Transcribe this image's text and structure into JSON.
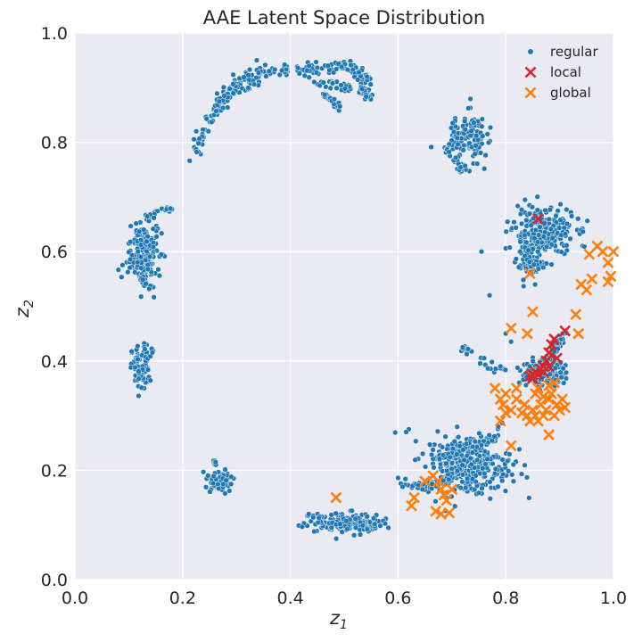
{
  "chart_data": {
    "type": "scatter",
    "title": "AAE Latent Space Distribution",
    "xlabel": "z",
    "xlabel_sub": "1",
    "ylabel": "z",
    "ylabel_sub": "2",
    "xlim": [
      0.0,
      1.0
    ],
    "ylim": [
      0.0,
      1.0
    ],
    "x_ticks": [
      "0.0",
      "0.2",
      "0.4",
      "0.6",
      "0.8",
      "1.0"
    ],
    "y_ticks": [
      "0.0",
      "0.2",
      "0.4",
      "0.6",
      "0.8",
      "1.0"
    ],
    "grid": true,
    "legend_position": "top-right",
    "series": [
      {
        "name": "regular",
        "marker": "circle",
        "color": "#1f77b4",
        "clusters": [
          {
            "shape": "arc",
            "points": [
              [
                0.22,
                0.78
              ],
              [
                0.24,
                0.82
              ],
              [
                0.26,
                0.86
              ],
              [
                0.28,
                0.89
              ],
              [
                0.31,
                0.92
              ],
              [
                0.35,
                0.93
              ],
              [
                0.4,
                0.93
              ],
              [
                0.45,
                0.935
              ],
              [
                0.5,
                0.94
              ],
              [
                0.53,
                0.925
              ],
              [
                0.55,
                0.91
              ]
            ],
            "spread": 0.012,
            "count": 200
          },
          {
            "shape": "arc",
            "points": [
              [
                0.27,
                0.87
              ],
              [
                0.3,
                0.895
              ],
              [
                0.34,
                0.915
              ]
            ],
            "spread": 0.01,
            "count": 40
          },
          {
            "shape": "arc",
            "points": [
              [
                0.44,
                0.915
              ],
              [
                0.49,
                0.905
              ],
              [
                0.53,
                0.895
              ],
              [
                0.55,
                0.885
              ]
            ],
            "spread": 0.008,
            "count": 50
          },
          {
            "shape": "arc",
            "points": [
              [
                0.46,
                0.89
              ],
              [
                0.48,
                0.875
              ],
              [
                0.49,
                0.86
              ]
            ],
            "spread": 0.006,
            "count": 25
          },
          {
            "shape": "arc",
            "points": [
              [
                0.53,
                0.9
              ],
              [
                0.54,
                0.885
              ]
            ],
            "spread": 0.005,
            "count": 15
          },
          {
            "shape": "blob",
            "center": [
              0.73,
              0.81
            ],
            "sx": 0.017,
            "sy": 0.022,
            "count": 140
          },
          {
            "shape": "arc",
            "points": [
              [
                0.69,
                0.79
              ],
              [
                0.71,
                0.76
              ],
              [
                0.72,
                0.75
              ]
            ],
            "spread": 0.006,
            "count": 25
          },
          {
            "shape": "blob",
            "center": [
              0.128,
              0.6
            ],
            "sx": 0.014,
            "sy": 0.03,
            "count": 170
          },
          {
            "shape": "arc",
            "points": [
              [
                0.13,
                0.66
              ],
              [
                0.15,
                0.67
              ],
              [
                0.18,
                0.678
              ]
            ],
            "spread": 0.005,
            "count": 25
          },
          {
            "shape": "arc",
            "points": [
              [
                0.12,
                0.56
              ],
              [
                0.13,
                0.54
              ],
              [
                0.145,
                0.532
              ]
            ],
            "spread": 0.005,
            "count": 20
          },
          {
            "shape": "blob",
            "center": [
              0.122,
              0.385
            ],
            "sx": 0.008,
            "sy": 0.022,
            "count": 80
          },
          {
            "shape": "arc",
            "points": [
              [
                0.13,
                0.4
              ],
              [
                0.145,
                0.42
              ]
            ],
            "spread": 0.004,
            "count": 10
          },
          {
            "shape": "blob",
            "center": [
              0.27,
              0.18
            ],
            "sx": 0.012,
            "sy": 0.01,
            "count": 60
          },
          {
            "shape": "arc",
            "points": [
              [
                0.26,
                0.21
              ],
              [
                0.255,
                0.22
              ]
            ],
            "spread": 0.003,
            "count": 8
          },
          {
            "shape": "blob",
            "center": [
              0.51,
              0.105
            ],
            "sx": 0.03,
            "sy": 0.008,
            "count": 170
          },
          {
            "shape": "arc",
            "points": [
              [
                0.43,
                0.12
              ],
              [
                0.46,
                0.11
              ],
              [
                0.5,
                0.095
              ],
              [
                0.55,
                0.095
              ]
            ],
            "spread": 0.006,
            "count": 40
          },
          {
            "shape": "blob",
            "center": [
              0.87,
              0.635
            ],
            "sx": 0.028,
            "sy": 0.022,
            "count": 260
          },
          {
            "shape": "blob",
            "center": [
              0.845,
              0.575
            ],
            "sx": 0.012,
            "sy": 0.015,
            "count": 70
          },
          {
            "shape": "blob",
            "center": [
              0.87,
              0.38
            ],
            "sx": 0.02,
            "sy": 0.01,
            "count": 150
          },
          {
            "shape": "arc",
            "points": [
              [
                0.84,
                0.37
              ],
              [
                0.87,
                0.39
              ],
              [
                0.89,
                0.42
              ],
              [
                0.91,
                0.455
              ]
            ],
            "spread": 0.006,
            "count": 70
          },
          {
            "shape": "arc",
            "points": [
              [
                0.8,
                0.38
              ],
              [
                0.77,
                0.39
              ],
              [
                0.74,
                0.41
              ],
              [
                0.72,
                0.425
              ]
            ],
            "spread": 0.01,
            "count": 20
          },
          {
            "shape": "blob",
            "center": [
              0.73,
              0.21
            ],
            "sx": 0.04,
            "sy": 0.028,
            "count": 300
          },
          {
            "shape": "arc",
            "points": [
              [
                0.61,
                0.17
              ],
              [
                0.65,
                0.17
              ],
              [
                0.68,
                0.18
              ],
              [
                0.72,
                0.21
              ],
              [
                0.76,
                0.25
              ],
              [
                0.79,
                0.28
              ]
            ],
            "spread": 0.01,
            "count": 80
          },
          {
            "shape": "arc",
            "points": [
              [
                0.66,
                0.22
              ],
              [
                0.7,
                0.23
              ],
              [
                0.74,
                0.25
              ]
            ],
            "spread": 0.008,
            "count": 30
          },
          {
            "shape": "points",
            "points": [
              [
                0.62,
                0.275
              ],
              [
                0.615,
                0.27
              ],
              [
                0.6,
                0.186
              ],
              [
                0.755,
                0.6
              ],
              [
                0.77,
                0.52
              ],
              [
                0.73,
                0.422
              ],
              [
                0.72,
                0.425
              ],
              [
                0.76,
                0.405
              ],
              [
                0.79,
                0.39
              ],
              [
                0.8,
                0.45
              ],
              [
                0.81,
                0.435
              ],
              [
                0.825,
                0.36
              ]
            ]
          }
        ]
      },
      {
        "name": "local",
        "marker": "x",
        "color": "#d62728",
        "points": [
          [
            0.86,
            0.66
          ],
          [
            0.91,
            0.455
          ],
          [
            0.89,
            0.44
          ],
          [
            0.885,
            0.43
          ],
          [
            0.88,
            0.415
          ],
          [
            0.875,
            0.4
          ],
          [
            0.87,
            0.39
          ],
          [
            0.865,
            0.385
          ],
          [
            0.855,
            0.38
          ],
          [
            0.85,
            0.375
          ],
          [
            0.845,
            0.372
          ],
          [
            0.85,
            0.368
          ],
          [
            0.86,
            0.375
          ],
          [
            0.87,
            0.38
          ],
          [
            0.88,
            0.39
          ],
          [
            0.895,
            0.405
          ]
        ]
      },
      {
        "name": "global",
        "marker": "x",
        "color": "#ff7f0e",
        "points": [
          [
            0.485,
            0.15
          ],
          [
            0.625,
            0.135
          ],
          [
            0.63,
            0.15
          ],
          [
            0.65,
            0.18
          ],
          [
            0.665,
            0.19
          ],
          [
            0.675,
            0.18
          ],
          [
            0.68,
            0.165
          ],
          [
            0.685,
            0.155
          ],
          [
            0.69,
            0.145
          ],
          [
            0.67,
            0.125
          ],
          [
            0.68,
            0.12
          ],
          [
            0.695,
            0.122
          ],
          [
            0.7,
            0.165
          ],
          [
            0.81,
            0.245
          ],
          [
            0.845,
            0.56
          ],
          [
            0.85,
            0.49
          ],
          [
            0.81,
            0.46
          ],
          [
            0.84,
            0.45
          ],
          [
            0.78,
            0.35
          ],
          [
            0.79,
            0.33
          ],
          [
            0.795,
            0.32
          ],
          [
            0.8,
            0.34
          ],
          [
            0.81,
            0.31
          ],
          [
            0.82,
            0.33
          ],
          [
            0.83,
            0.305
          ],
          [
            0.835,
            0.32
          ],
          [
            0.84,
            0.3
          ],
          [
            0.845,
            0.29
          ],
          [
            0.85,
            0.31
          ],
          [
            0.855,
            0.3
          ],
          [
            0.86,
            0.29
          ],
          [
            0.865,
            0.32
          ],
          [
            0.87,
            0.3
          ],
          [
            0.875,
            0.31
          ],
          [
            0.88,
            0.33
          ],
          [
            0.885,
            0.34
          ],
          [
            0.89,
            0.3
          ],
          [
            0.895,
            0.32
          ],
          [
            0.9,
            0.31
          ],
          [
            0.905,
            0.33
          ],
          [
            0.91,
            0.315
          ],
          [
            0.855,
            0.34
          ],
          [
            0.86,
            0.35
          ],
          [
            0.87,
            0.335
          ],
          [
            0.88,
            0.355
          ],
          [
            0.89,
            0.36
          ],
          [
            0.88,
            0.265
          ],
          [
            0.79,
            0.29
          ],
          [
            0.8,
            0.305
          ],
          [
            0.93,
            0.485
          ],
          [
            0.94,
            0.54
          ],
          [
            0.95,
            0.53
          ],
          [
            0.96,
            0.55
          ],
          [
            0.955,
            0.595
          ],
          [
            0.97,
            0.61
          ],
          [
            0.98,
            0.6
          ],
          [
            0.99,
            0.58
          ],
          [
            1.0,
            0.6
          ],
          [
            0.995,
            0.555
          ],
          [
            0.99,
            0.545
          ],
          [
            0.935,
            0.45
          ],
          [
            0.82,
            0.35
          ]
        ]
      }
    ]
  }
}
